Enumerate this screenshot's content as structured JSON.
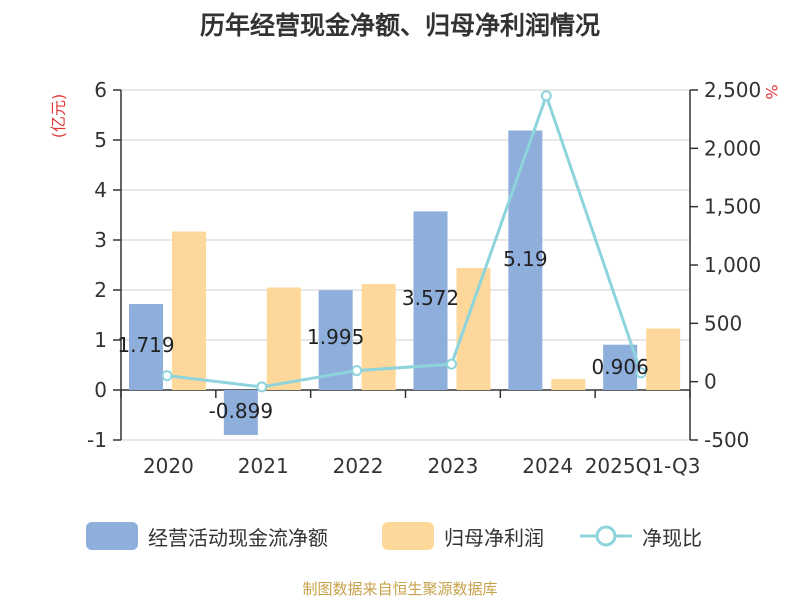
{
  "title": "历年经营现金净额、归母净利润情况",
  "source": "制图数据来自恒生聚源数据库",
  "colors": {
    "ocf": "#8eaedc",
    "profit": "#fdd89a",
    "ratio": "#8ed4dc",
    "unit_left": "#e03a3a"
  },
  "chart_data": {
    "type": "bar",
    "categories": [
      "2020",
      "2021",
      "2022",
      "2023",
      "2024",
      "2025Q1-Q3"
    ],
    "y_left_label": "(亿元)",
    "y_right_label": "%",
    "ylim_left": [
      -1,
      6
    ],
    "y_left_ticks": [
      "-1",
      "0",
      "1",
      "2",
      "3",
      "4",
      "5",
      "6"
    ],
    "ylim_right": [
      -500,
      2500
    ],
    "y_right_ticks": [
      "-500",
      "0",
      "500",
      "1,000",
      "1,500",
      "2,000",
      "2,500"
    ],
    "grid": true,
    "legend_position": "bottom",
    "series": [
      {
        "name": "经营活动现金流净额",
        "type": "bar",
        "values": [
          1.719,
          -0.899,
          1.995,
          3.572,
          5.19,
          0.906
        ],
        "labels": [
          "1.719",
          "-0.899",
          "1.995",
          "3.572",
          "5.19",
          "0.906"
        ]
      },
      {
        "name": "归母净利润",
        "type": "bar",
        "values": [
          3.17,
          2.05,
          2.12,
          2.44,
          0.22,
          1.23
        ]
      },
      {
        "name": "净现比",
        "type": "line",
        "values": [
          52,
          -45,
          95,
          150,
          2450,
          75
        ]
      }
    ]
  }
}
